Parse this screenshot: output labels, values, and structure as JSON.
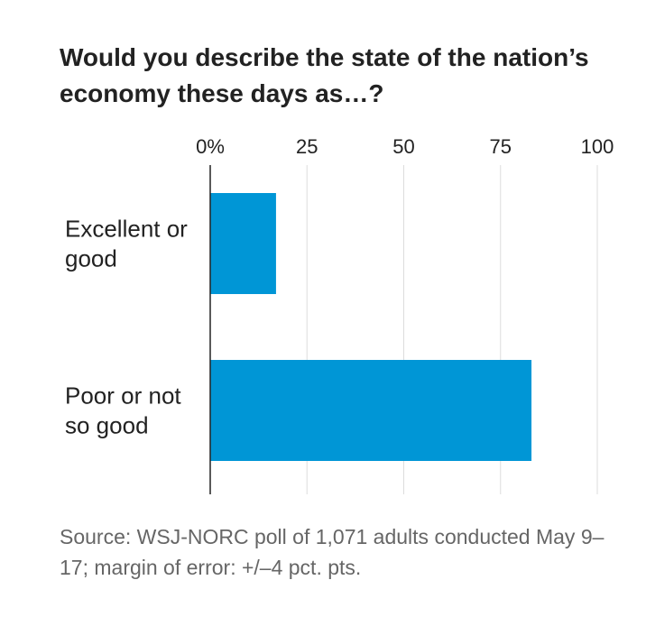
{
  "chart_data": {
    "type": "bar",
    "orientation": "horizontal",
    "title": "Would you describe the state of the nation’s economy these days as…?",
    "categories": [
      [
        "Excellent or",
        "good"
      ],
      [
        "Poor or not",
        "so good"
      ]
    ],
    "values": [
      17,
      83
    ],
    "xlim": [
      0,
      100
    ],
    "ticks": [
      0,
      25,
      50,
      75,
      100
    ],
    "tick_labels": [
      "0%",
      "25",
      "50",
      "75",
      "100"
    ],
    "grid": true,
    "xlabel": "",
    "ylabel": ""
  },
  "source": "Source: WSJ-NORC poll of 1,071 adults conducted May 9–17; margin of error: +/–4 pct. pts.",
  "colors": {
    "bar": "#0096d6",
    "grid": "#dddddd",
    "axis": "#222222",
    "text": "#222222",
    "muted": "#666666"
  }
}
